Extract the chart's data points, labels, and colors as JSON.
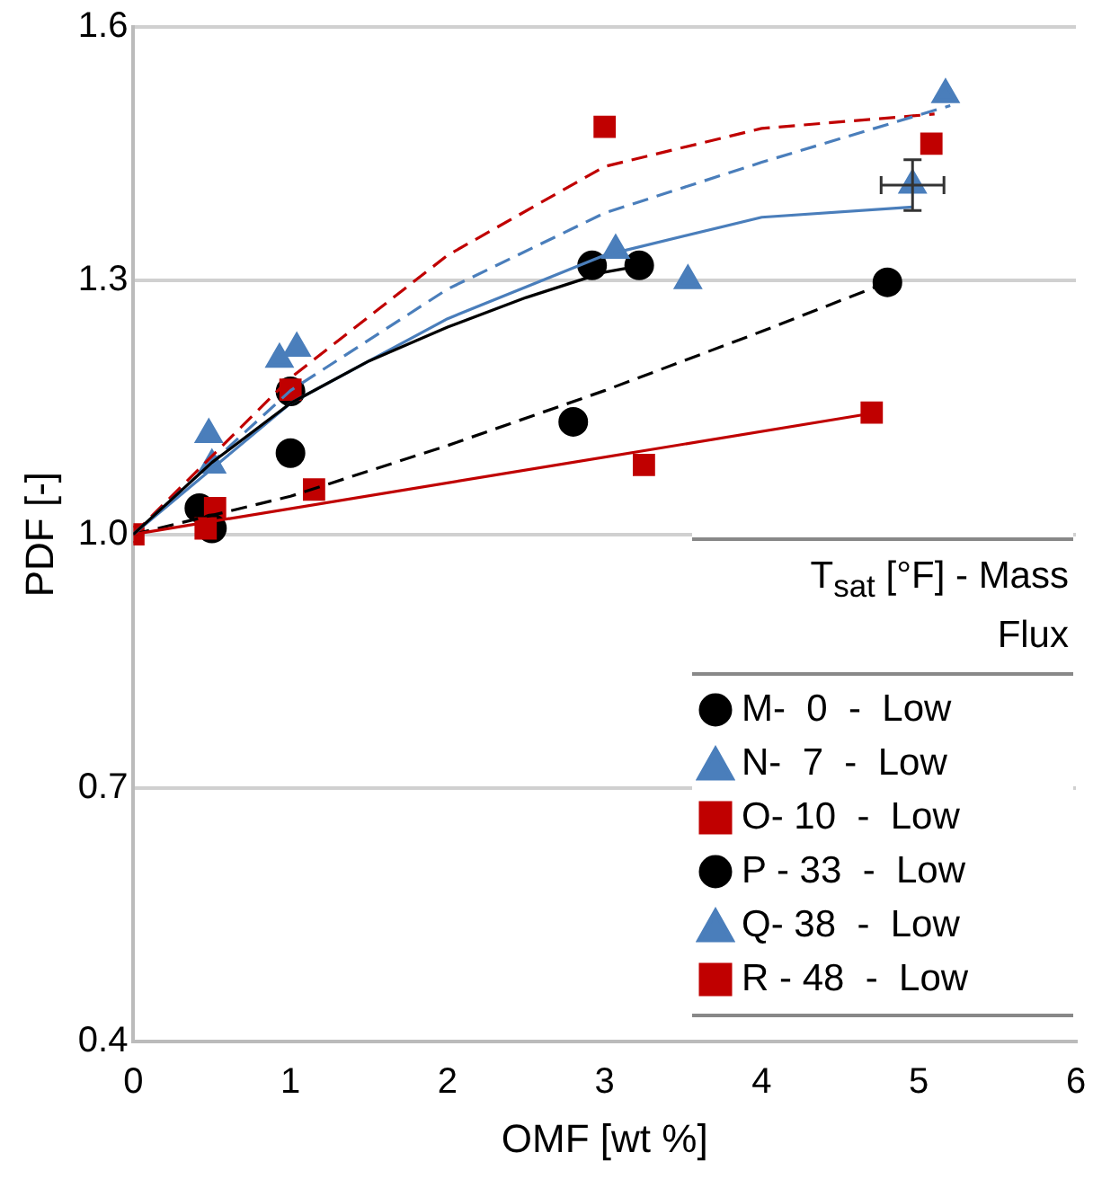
{
  "chart_data": {
    "type": "scatter",
    "xlabel": "OMF [wt %]",
    "ylabel": "PDF [-]",
    "legend_title": "T$_{sat}$ [°F] - Mass Flux",
    "legend": "bottom right",
    "grid": "y",
    "xlim": [
      0,
      6
    ],
    "xticks": [
      0,
      1,
      2,
      3,
      4,
      5,
      6
    ],
    "ylim": [
      0.4,
      1.6
    ],
    "yticks": [
      {
        "value": 0.4,
        "label": "0.4"
      },
      {
        "value": 0.7,
        "label": "0.7"
      },
      {
        "value": 1.0,
        "label": "1.0"
      },
      {
        "value": 1.3,
        "label": "1.3"
      },
      {
        "value": 1.6,
        "label": "1.6"
      }
    ],
    "series": [
      {
        "type": "line",
        "color": "#000000",
        "line_style": "solid",
        "marker": "none",
        "x": [
          0,
          0.5,
          1,
          1.5,
          2,
          2.5,
          3,
          3.24
        ],
        "values": [
          1.0,
          1.085,
          1.155,
          1.205,
          1.245,
          1.28,
          1.31,
          1.318
        ]
      },
      {
        "type": "line",
        "color": "#4a7ebb",
        "line_style": "solid",
        "marker": "none",
        "x": [
          0,
          1,
          2,
          3,
          4,
          4.96
        ],
        "values": [
          1.0,
          1.155,
          1.255,
          1.33,
          1.375,
          1.387
        ]
      },
      {
        "type": "line",
        "color": "#c00000",
        "line_style": "solid",
        "marker": "none",
        "x": [
          0,
          4.7
        ],
        "values": [
          1.0,
          1.143
        ]
      },
      {
        "type": "line",
        "color": "#000000",
        "line_style": "dashed",
        "marker": "none",
        "x": [
          0,
          1,
          2,
          3,
          4,
          4.8
        ],
        "values": [
          1.0,
          1.045,
          1.105,
          1.17,
          1.24,
          1.298
        ]
      },
      {
        "type": "line",
        "color": "#4a7ebb",
        "line_style": "dashed",
        "marker": "none",
        "x": [
          0,
          1,
          2,
          3,
          4,
          5.2
        ],
        "values": [
          1.0,
          1.17,
          1.29,
          1.38,
          1.44,
          1.507
        ]
      },
      {
        "type": "line",
        "color": "#c00000",
        "line_style": "dashed",
        "marker": "none",
        "x": [
          0,
          1,
          2,
          3,
          4,
          5.1
        ],
        "values": [
          1.0,
          1.185,
          1.33,
          1.435,
          1.48,
          1.497
        ]
      },
      {
        "type": "scatter",
        "name": "M-  0  -  Low",
        "color": "#000000",
        "marker": "circle",
        "x": [
          0.42,
          1.0,
          2.92,
          3.22
        ],
        "values": [
          1.031,
          1.169,
          1.318,
          1.318
        ]
      },
      {
        "type": "scatter",
        "name": "N-  7  -  Low",
        "color": "#4a7ebb",
        "marker": "triangle",
        "x": [
          0.5,
          0.93,
          3.53,
          4.96
        ],
        "values": [
          1.082,
          1.207,
          1.3,
          1.413
        ],
        "errors": [
          null,
          null,
          null,
          0.03
        ],
        "xerrors": [
          null,
          null,
          null,
          0.2
        ]
      },
      {
        "type": "scatter",
        "name": "O- 10  -  Low",
        "color": "#c00000",
        "marker": "square",
        "x": [
          0.52,
          1.15,
          3.25,
          4.7
        ],
        "values": [
          1.031,
          1.053,
          1.082,
          1.144
        ]
      },
      {
        "type": "scatter",
        "name": "P - 33  -  Low",
        "color": "#000000",
        "marker": "circle",
        "x": [
          0.5,
          1.0,
          2.8,
          4.8
        ],
        "values": [
          1.007,
          1.096,
          1.133,
          1.298
        ]
      },
      {
        "type": "scatter",
        "name": "Q- 38  -  Low",
        "color": "#4a7ebb",
        "marker": "triangle",
        "x": [
          0.48,
          1.04,
          3.07,
          5.17
        ],
        "values": [
          1.118,
          1.22,
          1.336,
          1.52
        ]
      },
      {
        "type": "scatter",
        "name": "R - 48  -  Low",
        "color": "#c00000",
        "marker": "square",
        "x": [
          0,
          0.46,
          1.0,
          3.0,
          5.08
        ],
        "values": [
          1.0,
          1.007,
          1.171,
          1.482,
          1.462
        ]
      }
    ]
  }
}
